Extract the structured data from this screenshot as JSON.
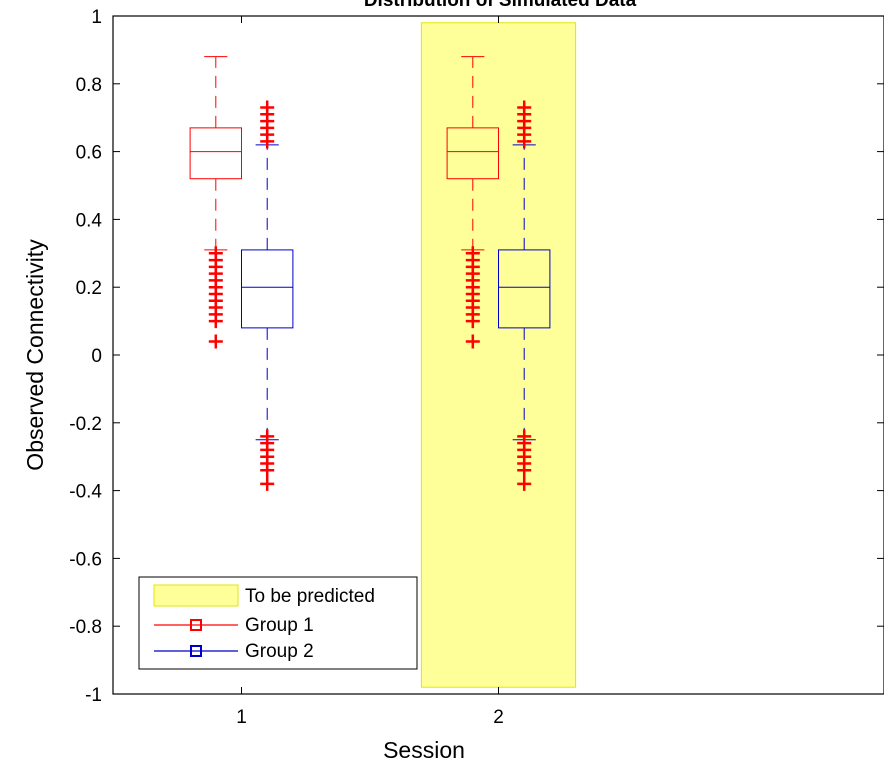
{
  "chart_data": {
    "type": "boxplot",
    "title": "Distribution of Simulated Data",
    "xlabel": "Session",
    "ylabel": "Observed Connectivity",
    "xlim": [
      0.5,
      3.5
    ],
    "ylim": [
      -1,
      1
    ],
    "categories": [
      "1",
      "2"
    ],
    "x_ticks": [
      "1",
      "2"
    ],
    "y_ticks": [
      "-1",
      "-0.8",
      "-0.6",
      "-0.4",
      "-0.2",
      "0",
      "0.2",
      "0.4",
      "0.6",
      "0.8",
      "1"
    ],
    "grid": false,
    "legend_position": "bottom-left",
    "highlight": {
      "label": "To be predicted",
      "x_range": [
        1.7,
        2.3
      ],
      "y_range": [
        -0.98,
        0.98
      ],
      "color": "#ffff99",
      "edge_color": "#e6e600"
    },
    "series": [
      {
        "name": "Group 1",
        "color": "#ff0000",
        "boxes": [
          {
            "session": "1",
            "whisker_low": 0.31,
            "q1": 0.52,
            "median": 0.6,
            "q3": 0.67,
            "whisker_high": 0.88,
            "outliers_high": [],
            "outliers_low": [
              0.3,
              0.28,
              0.26,
              0.24,
              0.22,
              0.2,
              0.18,
              0.16,
              0.14,
              0.12,
              0.1,
              0.04
            ]
          },
          {
            "session": "2",
            "whisker_low": 0.31,
            "q1": 0.52,
            "median": 0.6,
            "q3": 0.67,
            "whisker_high": 0.88,
            "outliers_high": [],
            "outliers_low": [
              0.3,
              0.28,
              0.26,
              0.24,
              0.22,
              0.2,
              0.18,
              0.16,
              0.14,
              0.12,
              0.1,
              0.04
            ]
          }
        ]
      },
      {
        "name": "Group 2",
        "color": "#0000cc",
        "boxes": [
          {
            "session": "1",
            "whisker_low": -0.25,
            "q1": 0.08,
            "median": 0.2,
            "q3": 0.31,
            "whisker_high": 0.62,
            "outliers_high": [
              0.63,
              0.65,
              0.67,
              0.69,
              0.71,
              0.73
            ],
            "outliers_low": [
              -0.24,
              -0.26,
              -0.28,
              -0.3,
              -0.32,
              -0.34,
              -0.38
            ]
          },
          {
            "session": "2",
            "whisker_low": -0.25,
            "q1": 0.08,
            "median": 0.2,
            "q3": 0.31,
            "whisker_high": 0.62,
            "outliers_high": [
              0.63,
              0.65,
              0.67,
              0.69,
              0.71,
              0.73
            ],
            "outliers_low": [
              -0.24,
              -0.26,
              -0.28,
              -0.3,
              -0.32,
              -0.34,
              -0.38
            ]
          }
        ]
      }
    ]
  }
}
